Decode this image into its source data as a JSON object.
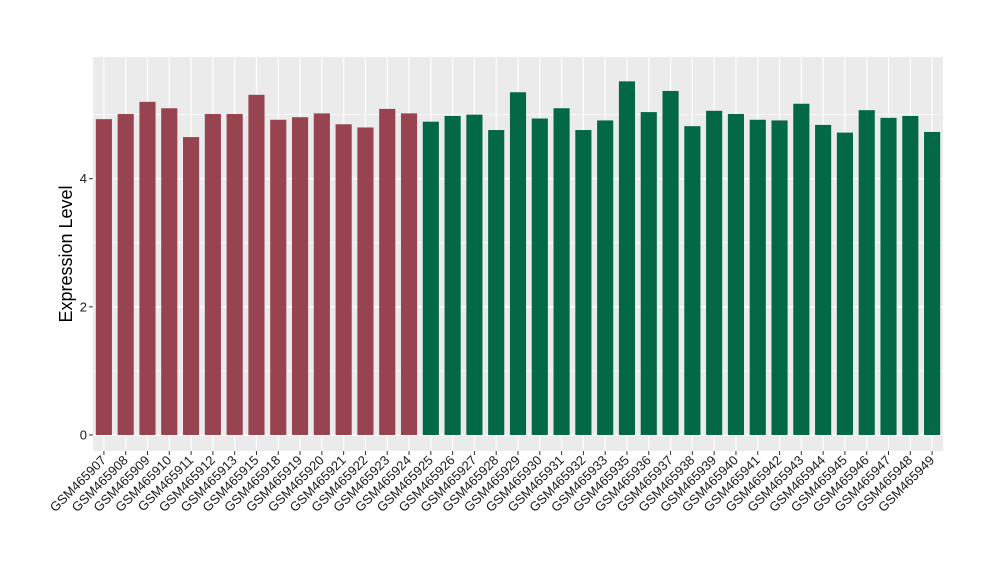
{
  "chart_data": {
    "type": "bar",
    "title": "",
    "xlabel": "",
    "ylabel": "Expression Level",
    "ylim": [
      -0.25,
      5.9
    ],
    "yticks": [
      0,
      2,
      4
    ],
    "ytick_labels": [
      "0",
      "2",
      "4"
    ],
    "grid": true,
    "panel_background": "#ebebeb",
    "grid_color": "#ffffff",
    "categories": [
      "GSM465907",
      "GSM465908",
      "GSM465909",
      "GSM465910",
      "GSM465911",
      "GSM465912",
      "GSM465913",
      "GSM465915",
      "GSM465918",
      "GSM465919",
      "GSM465920",
      "GSM465921",
      "GSM465922",
      "GSM465923",
      "GSM465924",
      "GSM465925",
      "GSM465926",
      "GSM465927",
      "GSM465928",
      "GSM465929",
      "GSM465930",
      "GSM465931",
      "GSM465932",
      "GSM465933",
      "GSM465935",
      "GSM465936",
      "GSM465937",
      "GSM465938",
      "GSM465939",
      "GSM465940",
      "GSM465941",
      "GSM465942",
      "GSM465943",
      "GSM465944",
      "GSM465945",
      "GSM465946",
      "GSM465947",
      "GSM465948",
      "GSM465949"
    ],
    "values": [
      4.93,
      5.01,
      5.2,
      5.1,
      4.65,
      5.01,
      5.01,
      5.31,
      4.92,
      4.96,
      5.02,
      4.85,
      4.8,
      5.09,
      5.02,
      4.89,
      4.98,
      5.0,
      4.76,
      5.35,
      4.94,
      5.1,
      4.76,
      4.91,
      5.52,
      5.04,
      5.37,
      4.82,
      5.06,
      5.01,
      4.92,
      4.91,
      5.17,
      4.84,
      4.72,
      5.07,
      4.95,
      4.98,
      4.73
    ],
    "bar_colors": [
      "#984350",
      "#984350",
      "#984350",
      "#984350",
      "#984350",
      "#984350",
      "#984350",
      "#984350",
      "#984350",
      "#984350",
      "#984350",
      "#984350",
      "#984350",
      "#984350",
      "#984350",
      "#026845",
      "#026845",
      "#026845",
      "#026845",
      "#026845",
      "#026845",
      "#026845",
      "#026845",
      "#026845",
      "#026845",
      "#026845",
      "#026845",
      "#026845",
      "#026845",
      "#026845",
      "#026845",
      "#026845",
      "#026845",
      "#026845",
      "#026845",
      "#026845",
      "#026845",
      "#026845",
      "#026845"
    ]
  }
}
